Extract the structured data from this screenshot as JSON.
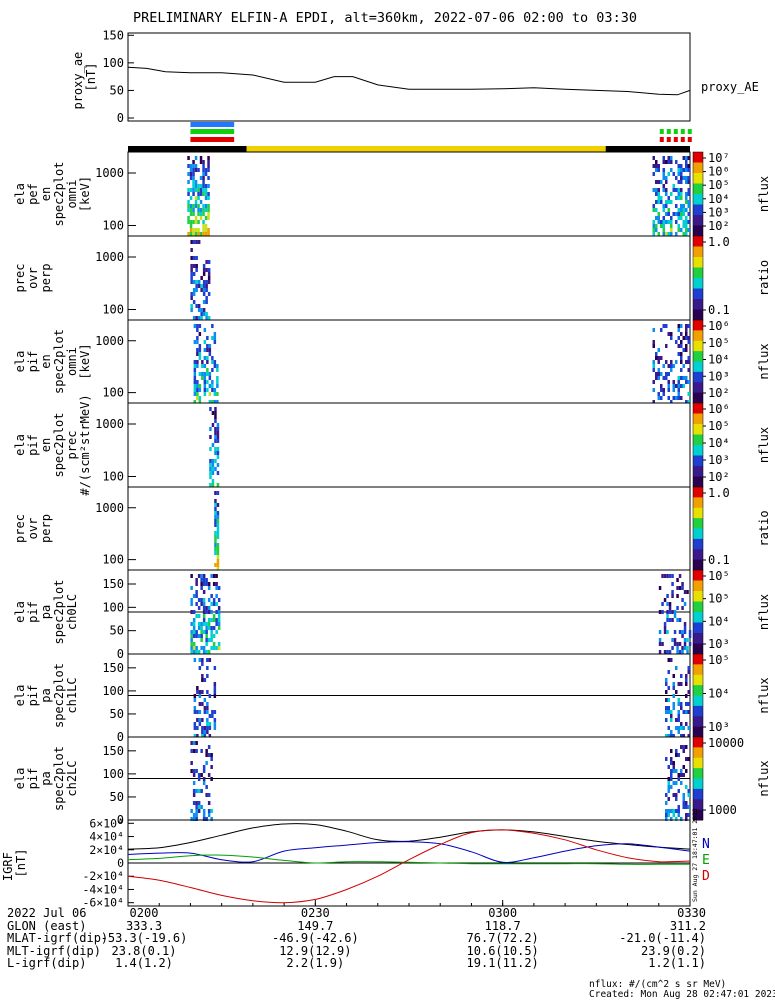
{
  "title": "PRELIMINARY ELFIN-A EPDI, alt=360km, 2022-07-06 02:00 to 03:30",
  "colors": {
    "frame": "#000000",
    "ae_line": "#000000",
    "bar_blue": "#1f78ff",
    "bar_green": "#10d010",
    "bar_red": "#e00000",
    "status_yellow": "#f0d000",
    "status_black": "#000000",
    "grf_x": "#000000",
    "grf_n": "#0000c0",
    "grf_e": "#00a000",
    "grf_d": "#d00000"
  },
  "status_bar": {
    "segments": [
      {
        "t0": 0,
        "t1": 19,
        "color": "black"
      },
      {
        "t0": 19,
        "t1": 76.5,
        "color": "yellow"
      },
      {
        "t0": 76.5,
        "t1": 90,
        "color": "black"
      }
    ]
  },
  "science_zone_markers": [
    {
      "t0": 10,
      "t1": 17,
      "row": 0,
      "color": "blue",
      "style": "solid"
    },
    {
      "t0": 10,
      "t1": 17,
      "row": 1,
      "color": "green",
      "style": "solid"
    },
    {
      "t0": 10,
      "t1": 17,
      "row": 2,
      "color": "red",
      "style": "solid"
    },
    {
      "t0": 85,
      "t1": 90,
      "row": 1,
      "color": "green",
      "style": "dotted"
    },
    {
      "t0": 85,
      "t1": 90,
      "row": 2,
      "color": "red",
      "style": "dotted"
    }
  ],
  "colorbars": [
    {
      "labels": [
        "10⁷",
        "10⁶",
        "10⁵",
        "10⁴",
        "10³",
        "10²"
      ],
      "unit": "nflux"
    },
    {
      "labels": [
        "1.0",
        "0.1"
      ],
      "unit": "ratio"
    },
    {
      "labels": [
        "10⁶",
        "10⁵",
        "10⁴",
        "10³",
        "10²"
      ],
      "unit": "nflux"
    },
    {
      "labels": [
        "10⁶",
        "10⁵",
        "10⁴",
        "10³",
        "10²"
      ],
      "unit": "nflux"
    },
    {
      "labels": [
        "1.0",
        "0.1"
      ],
      "unit": "ratio"
    },
    {
      "labels": [
        "10⁵",
        "10⁵",
        "10⁴",
        "10³"
      ],
      "unit": "nflux"
    },
    {
      "labels": [
        "10⁵",
        "10⁴",
        "10³"
      ],
      "unit": "nflux"
    },
    {
      "labels": [
        "10000",
        "1000"
      ],
      "unit": "nflux"
    }
  ],
  "footer": {
    "rows": [
      {
        "label": "2022 Jul 06",
        "values": [
          "0200",
          "0230",
          "0300",
          "0330"
        ]
      },
      {
        "label": "GLON (east)",
        "values": [
          "333.3",
          "149.7",
          "118.7",
          "311.2"
        ]
      },
      {
        "label": "MLAT-igrf(dip)",
        "values": [
          "-53.3(-19.6)",
          "-46.9(-42.6)",
          "76.7(72.2)",
          "-21.0(-11.4)"
        ]
      },
      {
        "label": "MLT-igrf(dip)",
        "values": [
          "23.8(0.1)",
          "12.9(12.9)",
          "10.6(10.5)",
          "23.9(0.2)"
        ]
      },
      {
        "label": "L-igrf(dip)",
        "values": [
          "1.4(1.2)",
          "2.2(1.9)",
          "19.1(11.2)",
          "1.2(1.1)"
        ]
      }
    ],
    "unit_note": "nflux: #/(cm^2 s sr MeV)",
    "created": "Created: Mon Aug 28 02:47:01 2023",
    "side_stamp": "Sun Aug 27 18:47:01 2023"
  },
  "chart_data": [
    {
      "type": "line",
      "panel": "proxy_ae",
      "ylabel": "proxy_ae [nT]",
      "legend": "proxy_AE",
      "x_unit": "minutes after 02:00",
      "xlim": [
        0,
        90
      ],
      "ylim": [
        0,
        150
      ],
      "yticks": [
        "0",
        "50",
        "100",
        "150"
      ],
      "x": [
        0,
        3,
        6,
        10,
        15,
        20,
        25,
        30,
        33,
        36,
        40,
        45,
        50,
        55,
        60,
        65,
        70,
        75,
        80,
        85,
        88,
        90
      ],
      "y": [
        92,
        90,
        84,
        82,
        82,
        78,
        65,
        65,
        75,
        75,
        60,
        52,
        52,
        52,
        53,
        55,
        52,
        50,
        48,
        43,
        42,
        50
      ]
    },
    {
      "type": "heatmap",
      "panel": "ela_pef_en_omni",
      "ylabel": "ela pef en spec2plot omni [keV]",
      "yticks": [
        "100",
        "1000"
      ],
      "scale": "log",
      "events": [
        {
          "t0": 9.5,
          "t1": 13,
          "intensity": "high"
        },
        {
          "t0": 84,
          "t1": 90,
          "intensity": "medium"
        }
      ]
    },
    {
      "type": "heatmap",
      "panel": "prec_ovr_perp_e",
      "ylabel": "prec ovr perp",
      "yticks": [
        "100",
        "1000"
      ],
      "scale": "log",
      "events": [
        {
          "t0": 10,
          "t1": 13,
          "intensity": "low"
        }
      ]
    },
    {
      "type": "heatmap",
      "panel": "ela_pif_en_omni",
      "ylabel": "ela pif en spec2plot omni [keV]",
      "yticks": [
        "100",
        "1000"
      ],
      "scale": "log",
      "events": [
        {
          "t0": 10.5,
          "t1": 14.5,
          "intensity": "medium"
        },
        {
          "t0": 84,
          "t1": 90,
          "intensity": "low"
        }
      ]
    },
    {
      "type": "heatmap",
      "panel": "ela_pif_en_prec",
      "ylabel": "ela pif en spec2plot prec #/(scm²strMeV)",
      "yticks": [
        "100",
        "1000"
      ],
      "scale": "log",
      "events": [
        {
          "t0": 13,
          "t1": 14.5,
          "intensity": "medium"
        }
      ]
    },
    {
      "type": "heatmap",
      "panel": "prec_ovr_perp_i",
      "ylabel": "prec ovr perp",
      "yticks": [
        "100",
        "1000"
      ],
      "scale": "log",
      "events": [
        {
          "t0": 13.8,
          "t1": 14.6,
          "intensity": "high"
        }
      ]
    },
    {
      "type": "heatmap",
      "panel": "ela_pif_pa_ch0LC",
      "ylabel": "ela pif pa spec2plot ch0LC",
      "yticks": [
        "0",
        "50",
        "100",
        "150"
      ],
      "ylim": [
        0,
        180
      ],
      "refline": 90,
      "events": [
        {
          "t0": 10,
          "t1": 14.5,
          "intensity": "medium"
        },
        {
          "t0": 85,
          "t1": 90,
          "intensity": "low"
        }
      ]
    },
    {
      "type": "heatmap",
      "panel": "ela_pif_pa_ch1LC",
      "ylabel": "ela pif pa spec2plot ch1LC",
      "yticks": [
        "0",
        "50",
        "100",
        "150"
      ],
      "ylim": [
        0,
        180
      ],
      "refline": 90,
      "events": [
        {
          "t0": 10.5,
          "t1": 14,
          "intensity": "low"
        },
        {
          "t0": 86,
          "t1": 90,
          "intensity": "low"
        }
      ]
    },
    {
      "type": "heatmap",
      "panel": "ela_pif_pa_ch2LC",
      "ylabel": "ela pif pa spec2plot ch2LC",
      "yticks": [
        "0",
        "50",
        "100",
        "150"
      ],
      "ylim": [
        0,
        180
      ],
      "refline": 90,
      "events": [
        {
          "t0": 10,
          "t1": 13.5,
          "intensity": "low"
        },
        {
          "t0": 86,
          "t1": 90,
          "intensity": "low"
        }
      ]
    },
    {
      "type": "line",
      "panel": "igrf",
      "ylabel": "IGRF [nT]",
      "ylim": [
        -65000,
        65000
      ],
      "yticks": [
        "-6×10⁴",
        "-4×10⁴",
        "-2×10⁴",
        "0",
        "2×10⁴",
        "4×10⁴",
        "6×10⁴"
      ],
      "ytick_values": [
        -60000,
        -40000,
        -20000,
        0,
        20000,
        40000,
        60000
      ],
      "legend": [
        "N",
        "E",
        "D"
      ],
      "x": [
        0,
        5,
        10,
        15,
        20,
        25,
        30,
        35,
        40,
        45,
        50,
        55,
        60,
        65,
        70,
        75,
        80,
        85,
        90
      ],
      "series": [
        {
          "name": "",
          "color": "black",
          "values": [
            21000,
            23000,
            31000,
            42000,
            53000,
            59000,
            58000,
            48000,
            35000,
            33000,
            39000,
            47000,
            50000,
            47000,
            40000,
            33000,
            28000,
            24000,
            21000
          ]
        },
        {
          "name": "N",
          "color": "blue",
          "values": [
            13000,
            15000,
            15000,
            5000,
            2000,
            18000,
            23000,
            27000,
            31000,
            32000,
            29000,
            17000,
            1000,
            8000,
            18000,
            26000,
            29000,
            24000,
            18000
          ]
        },
        {
          "name": "E",
          "color": "green",
          "values": [
            5000,
            7000,
            11000,
            12000,
            9000,
            4000,
            0,
            2000,
            2000,
            1000,
            0,
            -1000,
            -1000,
            -1000,
            -1000,
            -1000,
            -2000,
            -2000,
            -2000
          ]
        },
        {
          "name": "D",
          "color": "red",
          "values": [
            -20000,
            -26000,
            -37000,
            -49000,
            -57000,
            -60000,
            -55000,
            -40000,
            -20000,
            5000,
            28000,
            46000,
            50000,
            45000,
            35000,
            20000,
            8000,
            2000,
            3000
          ]
        }
      ]
    }
  ]
}
